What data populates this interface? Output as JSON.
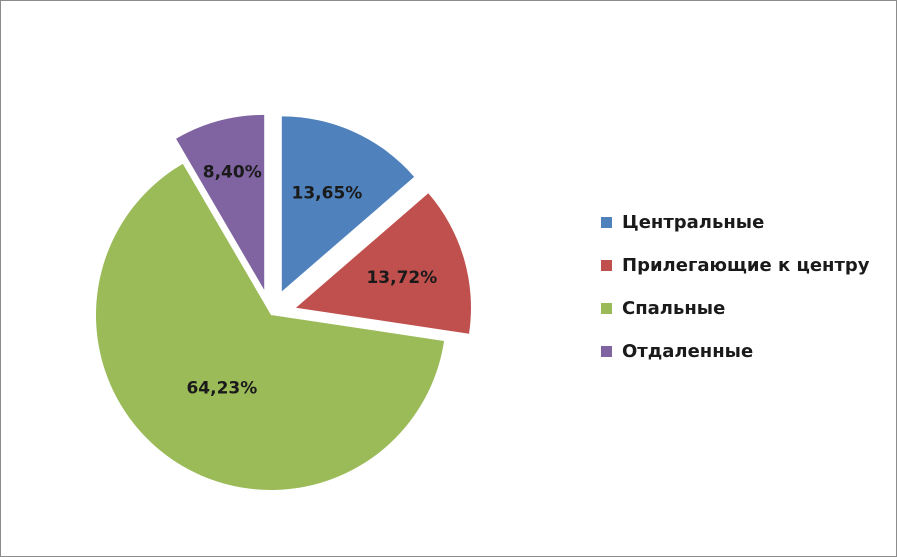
{
  "chart_data": {
    "type": "pie",
    "exploded": true,
    "legend_position": "right",
    "slices": [
      {
        "label": "Центральные",
        "value": 13.65,
        "display": "13,65%",
        "color": "#4F81BD"
      },
      {
        "label": "Прилегающие к центру",
        "value": 13.72,
        "display": "13,72%",
        "color": "#C0504D"
      },
      {
        "label": "Спальные",
        "value": 64.23,
        "display": "64,23%",
        "color": "#9BBB59"
      },
      {
        "label": "Отдаленные",
        "value": 8.4,
        "display": "8,40%",
        "color": "#8064A2"
      }
    ]
  }
}
